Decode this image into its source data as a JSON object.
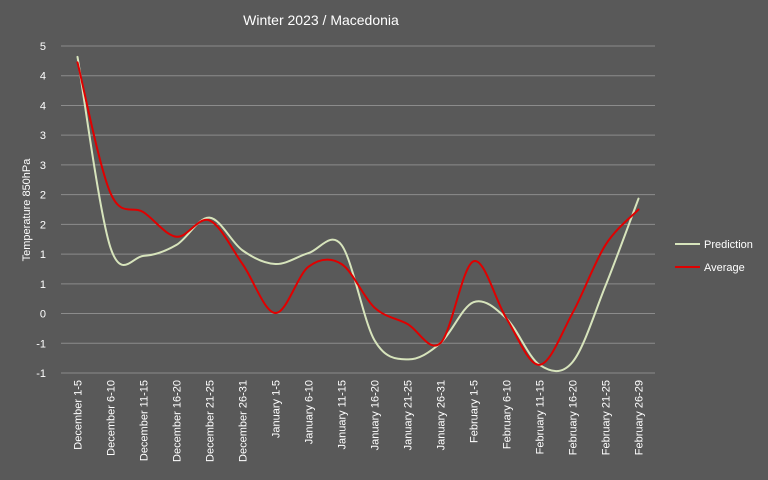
{
  "chart_data": {
    "type": "line",
    "title": "Winter 2023 /  Macedonia",
    "xlabel": "",
    "ylabel": "Temperature  850hPa",
    "categories": [
      "December 1-5",
      "December 6-10",
      "December 11-15",
      "December 16-20",
      "December 21-25",
      "December 26-31",
      "January 1-5",
      "January 6-10",
      "January 11-15",
      "January 16-20",
      "January 21-25",
      "January 26-31",
      "February 1-5",
      "February 6-10",
      "February 11-15",
      "February 16-20",
      "February 21-25",
      "February 26-29"
    ],
    "ylim": [
      -1,
      5
    ],
    "y_tick_labels": [
      "-1",
      "-1",
      "0",
      "1",
      "1",
      "2",
      "2",
      "3",
      "3",
      "4",
      "4",
      "5"
    ],
    "grid": true,
    "legend_position": "right",
    "series": [
      {
        "name": "Prediction",
        "color": "#d7e4bc",
        "values": [
          4.8,
          1.3,
          1.15,
          1.35,
          1.85,
          1.25,
          1.0,
          1.2,
          1.35,
          -0.4,
          -0.75,
          -0.45,
          0.3,
          0.0,
          -0.85,
          -0.8,
          0.6,
          2.2
        ]
      },
      {
        "name": "Average",
        "color": "#e00000",
        "values": [
          4.7,
          2.3,
          1.95,
          1.5,
          1.8,
          1.0,
          0.1,
          0.95,
          1.0,
          0.2,
          -0.1,
          -0.45,
          1.05,
          0.0,
          -0.85,
          0.1,
          1.35,
          2.0
        ]
      }
    ]
  }
}
